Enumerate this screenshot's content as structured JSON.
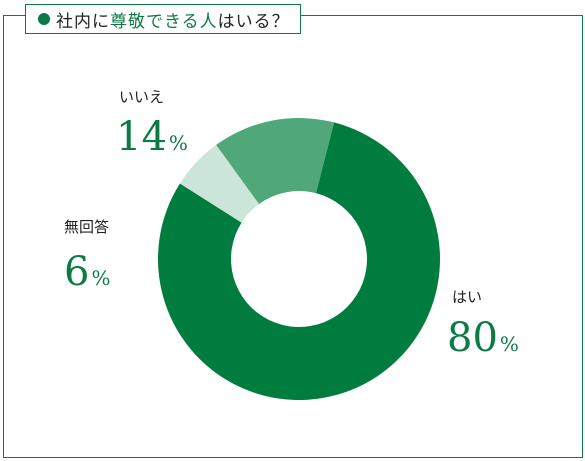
{
  "title": {
    "prefix": "社内に",
    "highlight": "尊敬できる人",
    "suffix": "はいる？"
  },
  "chart_data": {
    "type": "pie",
    "variant": "donut",
    "title": "社内に尊敬できる人はいる？",
    "start_angle_deg": 14.4,
    "categories": [
      "はい",
      "無回答",
      "いいえ"
    ],
    "values": [
      80,
      6,
      14
    ],
    "value_labels": [
      "80",
      "6",
      "14"
    ],
    "unit": "%",
    "colors": [
      "#007c3f",
      "#cbe6d8",
      "#50a87a"
    ]
  },
  "colors": {
    "accent": "#0c7a44",
    "text": "#222222"
  }
}
